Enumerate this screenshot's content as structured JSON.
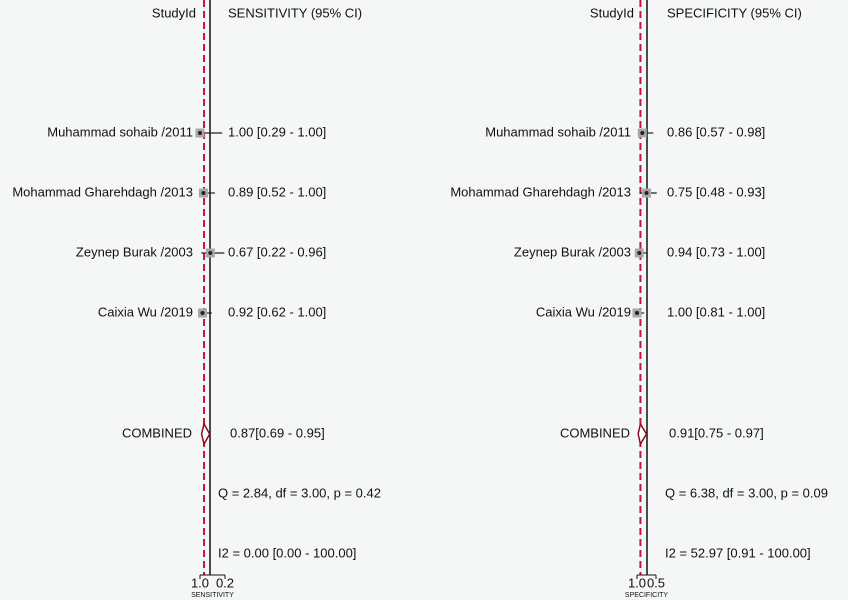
{
  "chart_data": [
    {
      "type": "forest",
      "column_headers": [
        "StudyId",
        "SENSITIVITY (95% CI)"
      ],
      "categories": [
        "Muhammad sohaib /2011",
        "Mohammad Gharehdagh /2013",
        "Zeynep Burak /2003",
        "Caixia Wu /2019"
      ],
      "values": [
        1.0,
        0.89,
        0.67,
        0.92
      ],
      "ci_low": [
        0.29,
        0.52,
        0.22,
        0.62
      ],
      "ci_high": [
        1.0,
        1.0,
        0.96,
        1.0
      ],
      "value_labels": [
        "1.00 [0.29 - 1.00]",
        "0.89 [0.52 - 1.00]",
        "0.67 [0.22 - 0.96]",
        "0.92 [0.62 - 1.00]"
      ],
      "combined": {
        "label": "COMBINED",
        "value": 0.87,
        "ci_low": 0.69,
        "ci_high": 0.95,
        "value_label": "0.87[0.69 - 0.95]"
      },
      "heterogeneity": "Q =  2.84, df = 3.00, p =  0.42",
      "i2": "I2 = 0.00 [0.00 - 100.00]",
      "xlabel": "SENSITIVITY",
      "xlim": [
        1.0,
        0.2
      ],
      "xticks": [
        {
          "value": 1.0,
          "label": "1.0"
        },
        0.2
      ]
    },
    {
      "type": "forest",
      "column_headers": [
        "StudyId",
        "SPECIFICITY (95% CI)"
      ],
      "categories": [
        "Muhammad sohaib /2011",
        "Mohammad Gharehdagh /2013",
        "Zeynep Burak /2003",
        "Caixia Wu /2019"
      ],
      "values": [
        0.86,
        0.75,
        0.94,
        1.0
      ],
      "ci_low": [
        0.57,
        0.48,
        0.73,
        0.81
      ],
      "ci_high": [
        0.98,
        0.93,
        1.0,
        1.0
      ],
      "value_labels": [
        "0.86 [0.57 - 0.98]",
        "0.75 [0.48 - 0.93]",
        "0.94 [0.73 - 1.00]",
        "1.00 [0.81 - 1.00]"
      ],
      "combined": {
        "label": "COMBINED",
        "value": 0.91,
        "ci_low": 0.75,
        "ci_high": 0.97,
        "value_label": "0.91[0.75 - 0.97]"
      },
      "heterogeneity": "Q =  6.38, df = 3.00, p =  0.09",
      "i2": "I2 = 52.97 [0.91 - 100.00]",
      "xlabel": "SPECIFICITY",
      "xlim": [
        1.0,
        0.5
      ],
      "xticks": [
        {
          "value": 1.0,
          "label": "1.0"
        },
        0.5
      ]
    }
  ]
}
